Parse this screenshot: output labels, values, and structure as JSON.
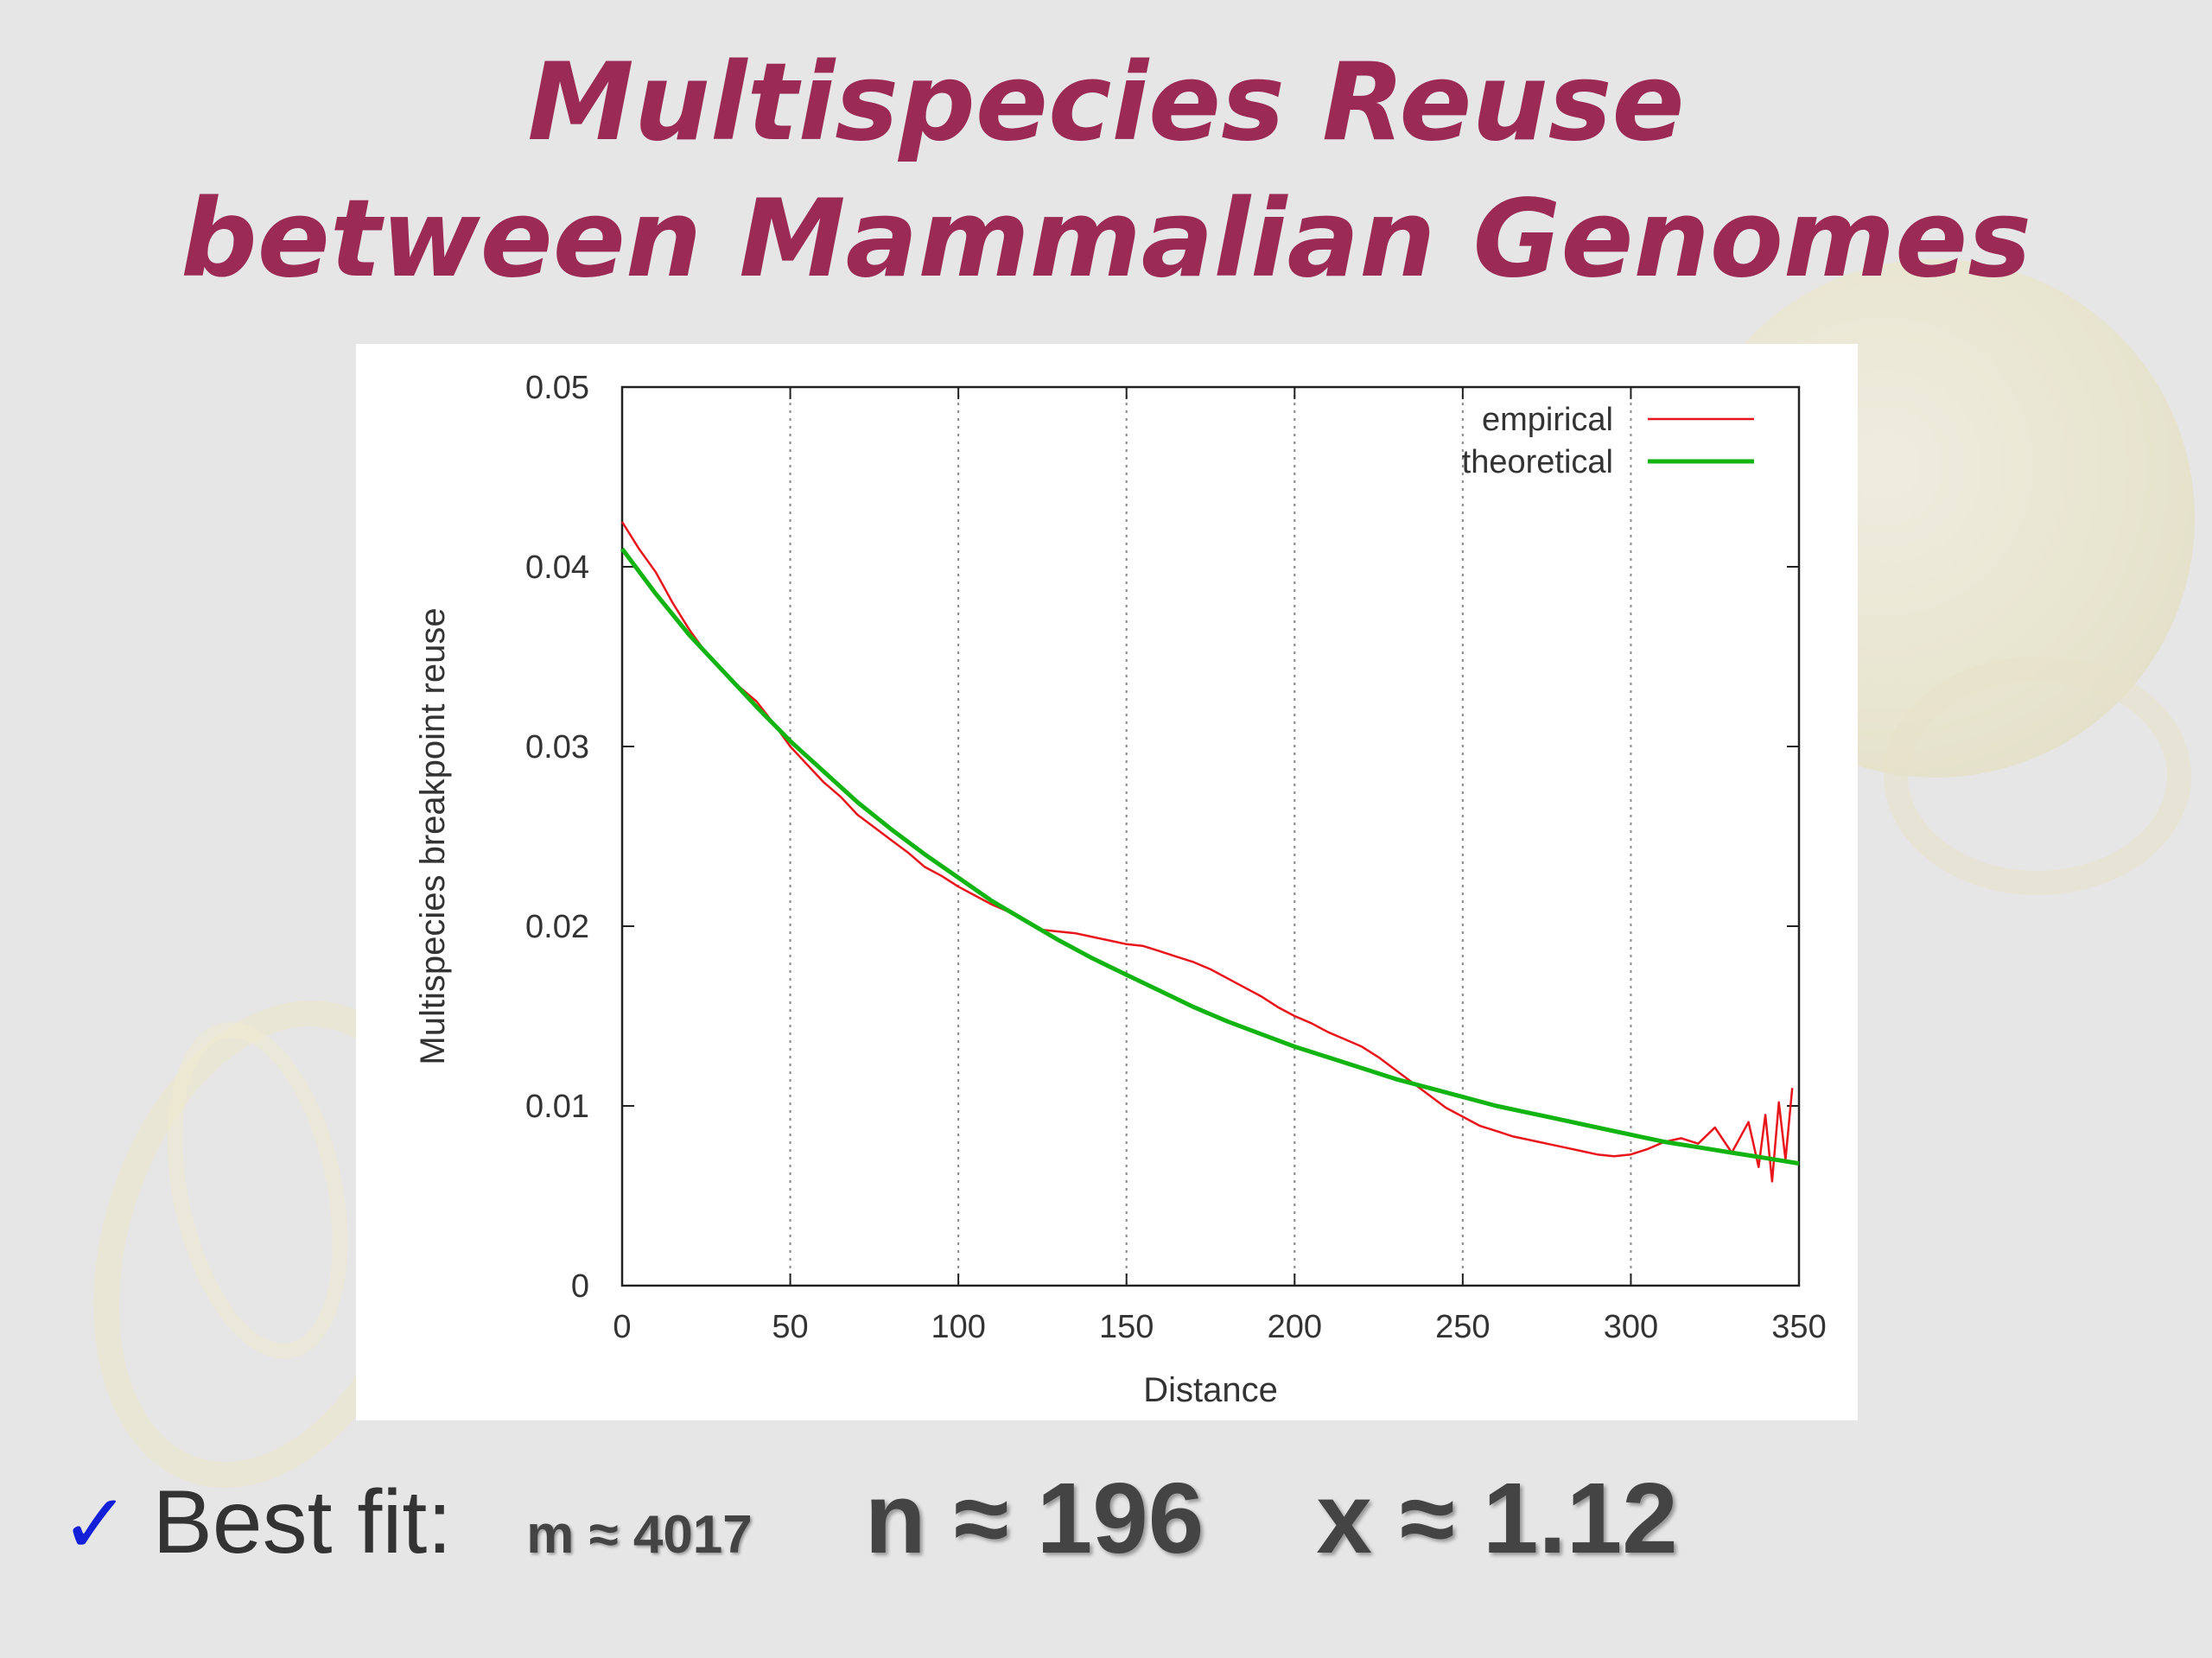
{
  "slide": {
    "title_line1": "Multispecies Reuse",
    "title_line2": "between Mammalian Genomes",
    "check_glyph": "✓",
    "fit_label": "Best fit:",
    "param_m": "m ≈ 4017",
    "param_n": "n ≈ 196",
    "param_x": "x ≈ 1.12"
  },
  "colors": {
    "title": "#9b2a55",
    "check": "#1420d8",
    "empirical": "#e8161a",
    "theoretical": "#12b412"
  },
  "chart_data": {
    "type": "line",
    "xlabel": "Distance",
    "ylabel": "Multispecies breakpoint reuse",
    "xlim": [
      0,
      350
    ],
    "ylim": [
      0,
      0.05
    ],
    "xticks": [
      "0",
      "50",
      "100",
      "150",
      "200",
      "250",
      "300",
      "350"
    ],
    "yticks": [
      "0",
      "0.01",
      "0.02",
      "0.03",
      "0.04",
      "0.05"
    ],
    "vertical_grid": "dotted at x ticks",
    "legend_position": "top-right",
    "series": [
      {
        "name": "empirical",
        "color": "#e8161a",
        "x": [
          0,
          5,
          10,
          15,
          20,
          25,
          30,
          35,
          40,
          45,
          50,
          55,
          60,
          65,
          70,
          75,
          80,
          85,
          90,
          95,
          100,
          105,
          110,
          115,
          120,
          125,
          130,
          135,
          140,
          145,
          150,
          155,
          160,
          165,
          170,
          175,
          180,
          185,
          190,
          195,
          200,
          205,
          210,
          215,
          220,
          225,
          230,
          235,
          240,
          245,
          250,
          255,
          260,
          265,
          270,
          275,
          280,
          285,
          290,
          295,
          300,
          305,
          310,
          315,
          320,
          325,
          330,
          335,
          338,
          340,
          342,
          344,
          346,
          348
        ],
        "y": [
          0.0425,
          0.041,
          0.0397,
          0.038,
          0.0365,
          0.0352,
          0.0342,
          0.0333,
          0.0325,
          0.0313,
          0.03,
          0.029,
          0.028,
          0.0272,
          0.0262,
          0.0255,
          0.0248,
          0.0241,
          0.0233,
          0.0228,
          0.0222,
          0.0217,
          0.0212,
          0.0208,
          0.0203,
          0.0198,
          0.0197,
          0.0196,
          0.0194,
          0.0192,
          0.019,
          0.0189,
          0.0186,
          0.0183,
          0.018,
          0.0176,
          0.0171,
          0.0166,
          0.0161,
          0.0155,
          0.015,
          0.0146,
          0.0141,
          0.0137,
          0.0133,
          0.0127,
          0.012,
          0.0113,
          0.0106,
          0.0099,
          0.0094,
          0.0089,
          0.0086,
          0.0083,
          0.0081,
          0.0079,
          0.0077,
          0.0075,
          0.0073,
          0.0072,
          0.0073,
          0.0076,
          0.008,
          0.0082,
          0.0079,
          0.0088,
          0.0074,
          0.0091,
          0.0066,
          0.0095,
          0.0058,
          0.0102,
          0.007,
          0.011
        ]
      },
      {
        "name": "theoretical",
        "color": "#12b412",
        "x": [
          0,
          10,
          20,
          30,
          40,
          50,
          60,
          70,
          80,
          90,
          100,
          110,
          120,
          130,
          140,
          150,
          160,
          170,
          180,
          190,
          200,
          210,
          220,
          230,
          240,
          250,
          260,
          270,
          280,
          290,
          300,
          310,
          320,
          330,
          340,
          350
        ],
        "y": [
          0.041,
          0.0385,
          0.0362,
          0.0342,
          0.0322,
          0.0303,
          0.0286,
          0.0269,
          0.0254,
          0.024,
          0.0227,
          0.0214,
          0.0203,
          0.0192,
          0.0182,
          0.0173,
          0.0164,
          0.0155,
          0.0147,
          0.014,
          0.0133,
          0.0127,
          0.0121,
          0.0115,
          0.011,
          0.0105,
          0.01,
          0.0096,
          0.0092,
          0.0088,
          0.0084,
          0.008,
          0.0077,
          0.0074,
          0.0071,
          0.0068
        ]
      }
    ]
  }
}
